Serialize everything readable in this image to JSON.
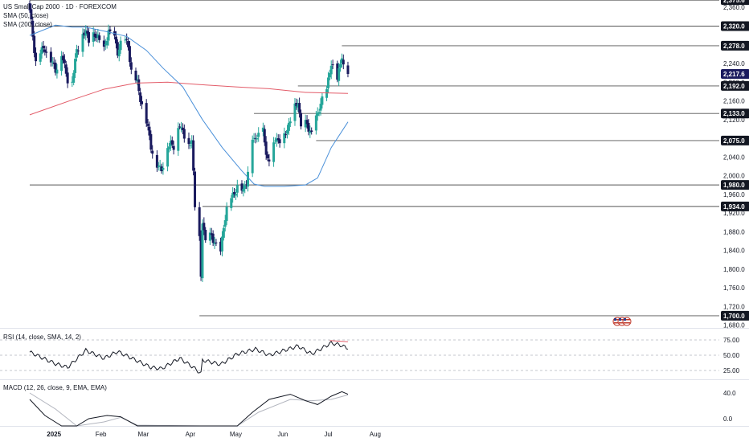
{
  "title": "US Small Cap 2000 · 1D · FOREXCOM",
  "legend": [
    "SMA (50, close)",
    "SMA (200, close)"
  ],
  "rsi_label": "RSI (14, close, SMA, 14, 2)",
  "macd_label": "MACD (12, 26, close, 9, EMA, EMA)",
  "colors": {
    "up": "#26a69a",
    "down": "#1a1a5e",
    "sma50": "#4a90d9",
    "sma200": "#e35d6a",
    "level_line": "#555555",
    "grid": "#eeeeee",
    "axis_text": "#131722"
  },
  "chart_data": {
    "type": "candlestick",
    "title": "US Small Cap 2000 · 1D · FOREXCOM",
    "x_labels": [
      "2025",
      "Feb",
      "Mar",
      "Apr",
      "May",
      "Jun",
      "Jul",
      "Aug"
    ],
    "price_axis": {
      "ticks": [
        1680,
        1720,
        1760,
        1800,
        1840,
        1880,
        1920,
        1960,
        2000,
        2040,
        2080,
        2120,
        2160,
        2200,
        2240,
        2280,
        2320,
        2360
      ],
      "tick_labels": [
        "1,680.0",
        "1,720.0",
        "1,760.0",
        "1,800.0",
        "1,840.0",
        "1,880.0",
        "1,920.0",
        "1,960.0",
        "2,000.0",
        "2,040.0",
        "2,080.0",
        "2,120.0",
        "2,160.0",
        "2,200.0",
        "2,240.0",
        "2,280.0",
        "2,320.0",
        "2,360.0"
      ],
      "range": [
        1665,
        2390
      ]
    },
    "horizontal_levels": [
      {
        "value": 2375.6,
        "label": "2,375.6",
        "from_date": "2024-12-16"
      },
      {
        "value": 2320.0,
        "label": "2,320.0",
        "from_date": "2024-12-16"
      },
      {
        "value": 2278.0,
        "label": "2,278.0",
        "from_date": "2025-07-10"
      },
      {
        "value": 2192.0,
        "label": "2,192.0",
        "from_date": "2025-06-11"
      },
      {
        "value": 2133.0,
        "label": "2,133.0",
        "from_date": "2025-05-13"
      },
      {
        "value": 2075.0,
        "label": "2,075.0",
        "from_date": "2025-06-23"
      },
      {
        "value": 1980.0,
        "label": "1,980.0",
        "from_date": "2024-12-16"
      },
      {
        "value": 1934.0,
        "label": "1,934.0",
        "from_date": "2025-04-09"
      },
      {
        "value": 1700.0,
        "label": "1,700.0",
        "from_date": "2025-04-07"
      }
    ],
    "last_price": {
      "value": 2217.6,
      "label": "2,217.6"
    },
    "anchors": [
      [
        "2024-12-16",
        2350
      ],
      [
        "2024-12-18",
        2300
      ],
      [
        "2024-12-20",
        2245
      ],
      [
        "2024-12-23",
        2262
      ],
      [
        "2024-12-26",
        2275
      ],
      [
        "2024-12-30",
        2245
      ],
      [
        "2025-01-02",
        2228
      ],
      [
        "2025-01-06",
        2258
      ],
      [
        "2025-01-08",
        2235
      ],
      [
        "2025-01-10",
        2208
      ],
      [
        "2025-01-13",
        2200
      ],
      [
        "2025-01-16",
        2270
      ],
      [
        "2025-01-22",
        2312
      ],
      [
        "2025-01-24",
        2290
      ],
      [
        "2025-01-28",
        2300
      ],
      [
        "2025-01-30",
        2300
      ],
      [
        "2025-02-03",
        2265
      ],
      [
        "2025-02-06",
        2312
      ],
      [
        "2025-02-10",
        2290
      ],
      [
        "2025-02-12",
        2265
      ],
      [
        "2025-02-14",
        2285
      ],
      [
        "2025-02-17",
        2285
      ],
      [
        "2025-02-19",
        2280
      ],
      [
        "2025-02-21",
        2225
      ],
      [
        "2025-02-25",
        2195
      ],
      [
        "2025-02-28",
        2155
      ],
      [
        "2025-03-04",
        2100
      ],
      [
        "2025-03-06",
        2065
      ],
      [
        "2025-03-10",
        2020
      ],
      [
        "2025-03-13",
        2015
      ],
      [
        "2025-03-17",
        2060
      ],
      [
        "2025-03-19",
        2070
      ],
      [
        "2025-03-21",
        2065
      ],
      [
        "2025-03-25",
        2110
      ],
      [
        "2025-03-27",
        2095
      ],
      [
        "2025-03-31",
        2060
      ],
      [
        "2025-04-02",
        2080
      ],
      [
        "2025-04-04",
        1935
      ],
      [
        "2025-04-07",
        1860
      ],
      [
        "2025-04-08",
        1785
      ],
      [
        "2025-04-09",
        1905
      ],
      [
        "2025-04-11",
        1860
      ],
      [
        "2025-04-15",
        1870
      ],
      [
        "2025-04-17",
        1860
      ],
      [
        "2025-04-21",
        1830
      ],
      [
        "2025-04-23",
        1895
      ],
      [
        "2025-04-25",
        1930
      ],
      [
        "2025-04-29",
        1955
      ],
      [
        "2025-05-02",
        1980
      ],
      [
        "2025-05-06",
        1965
      ],
      [
        "2025-05-08",
        1990
      ],
      [
        "2025-05-12",
        2080
      ],
      [
        "2025-05-14",
        2075
      ],
      [
        "2025-05-16",
        2100
      ],
      [
        "2025-05-19",
        2105
      ],
      [
        "2025-05-21",
        2040
      ],
      [
        "2025-05-23",
        2040
      ],
      [
        "2025-05-27",
        2080
      ],
      [
        "2025-05-29",
        2075
      ],
      [
        "2025-06-02",
        2085
      ],
      [
        "2025-06-04",
        2100
      ],
      [
        "2025-06-06",
        2120
      ],
      [
        "2025-06-09",
        2145
      ],
      [
        "2025-06-11",
        2160
      ],
      [
        "2025-06-13",
        2105
      ],
      [
        "2025-06-17",
        2110
      ],
      [
        "2025-06-20",
        2090
      ],
      [
        "2025-06-24",
        2130
      ],
      [
        "2025-06-26",
        2160
      ],
      [
        "2025-06-30",
        2180
      ],
      [
        "2025-07-02",
        2225
      ],
      [
        "2025-07-03",
        2245
      ],
      [
        "2025-07-07",
        2205
      ],
      [
        "2025-07-09",
        2240
      ],
      [
        "2025-07-10",
        2262
      ],
      [
        "2025-07-11",
        2240
      ],
      [
        "2025-07-14",
        2217.6
      ]
    ],
    "sma50": [
      [
        "2024-12-16",
        2300
      ],
      [
        "2025-01-02",
        2322
      ],
      [
        "2025-01-13",
        2318
      ],
      [
        "2025-01-22",
        2318
      ],
      [
        "2025-02-05",
        2308
      ],
      [
        "2025-02-18",
        2298
      ],
      [
        "2025-03-03",
        2268
      ],
      [
        "2025-03-14",
        2230
      ],
      [
        "2025-03-27",
        2190
      ],
      [
        "2025-04-09",
        2120
      ],
      [
        "2025-04-22",
        2060
      ],
      [
        "2025-05-05",
        2010
      ],
      [
        "2025-05-13",
        1982
      ],
      [
        "2025-05-20",
        1977
      ],
      [
        "2025-06-02",
        1977
      ],
      [
        "2025-06-16",
        1980
      ],
      [
        "2025-06-24",
        1995
      ],
      [
        "2025-07-03",
        2060
      ],
      [
        "2025-07-14",
        2115
      ]
    ],
    "sma200": [
      [
        "2024-12-16",
        2130
      ],
      [
        "2025-01-13",
        2162
      ],
      [
        "2025-02-03",
        2185
      ],
      [
        "2025-02-24",
        2198
      ],
      [
        "2025-03-17",
        2200
      ],
      [
        "2025-04-07",
        2195
      ],
      [
        "2025-05-01",
        2190
      ],
      [
        "2025-05-23",
        2186
      ],
      [
        "2025-06-16",
        2178
      ],
      [
        "2025-07-14",
        2176
      ]
    ],
    "rsi": {
      "name": "RSI (14, close, SMA, 14, 2)",
      "ticks": [
        25,
        50,
        75
      ],
      "tick_labels": [
        "25.00",
        "50.00",
        "75.00"
      ],
      "values": [
        [
          "2024-12-16",
          55
        ],
        [
          "2025-01-02",
          36
        ],
        [
          "2025-01-10",
          30
        ],
        [
          "2025-01-22",
          58
        ],
        [
          "2025-02-03",
          45
        ],
        [
          "2025-02-12",
          56
        ],
        [
          "2025-02-24",
          42
        ],
        [
          "2025-03-06",
          30
        ],
        [
          "2025-03-13",
          28
        ],
        [
          "2025-03-25",
          45
        ],
        [
          "2025-04-03",
          30
        ],
        [
          "2025-04-08",
          20
        ],
        [
          "2025-04-09",
          42
        ],
        [
          "2025-04-21",
          35
        ],
        [
          "2025-05-02",
          52
        ],
        [
          "2025-05-14",
          60
        ],
        [
          "2025-05-23",
          50
        ],
        [
          "2025-06-11",
          65
        ],
        [
          "2025-06-20",
          52
        ],
        [
          "2025-07-03",
          70
        ],
        [
          "2025-07-10",
          66
        ],
        [
          "2025-07-14",
          60
        ]
      ]
    },
    "macd": {
      "name": "MACD (12, 26, close, 9, EMA, EMA)",
      "ticks": [
        0,
        40
      ],
      "tick_labels": [
        "0.0",
        "40.0"
      ],
      "macd_line": [
        [
          "2024-12-16",
          30
        ],
        [
          "2024-12-26",
          5
        ],
        [
          "2025-01-06",
          -30
        ],
        [
          "2025-01-16",
          -28
        ],
        [
          "2025-01-24",
          0
        ],
        [
          "2025-02-05",
          5
        ],
        [
          "2025-02-14",
          3
        ],
        [
          "2025-02-25",
          -20
        ],
        [
          "2025-04-08",
          -60
        ],
        [
          "2025-05-02",
          -20
        ],
        [
          "2025-05-12",
          10
        ],
        [
          "2025-05-23",
          30
        ],
        [
          "2025-06-06",
          38
        ],
        [
          "2025-06-16",
          28
        ],
        [
          "2025-06-24",
          22
        ],
        [
          "2025-07-03",
          35
        ],
        [
          "2025-07-10",
          42
        ],
        [
          "2025-07-14",
          38
        ]
      ],
      "signal_line": [
        [
          "2024-12-16",
          40
        ],
        [
          "2025-01-02",
          15
        ],
        [
          "2025-01-16",
          -25
        ],
        [
          "2025-02-03",
          -5
        ],
        [
          "2025-02-14",
          2
        ],
        [
          "2025-02-25",
          -10
        ],
        [
          "2025-04-08",
          -55
        ],
        [
          "2025-05-02",
          -30
        ],
        [
          "2025-05-16",
          10
        ],
        [
          "2025-06-06",
          30
        ],
        [
          "2025-06-20",
          28
        ],
        [
          "2025-07-03",
          30
        ],
        [
          "2025-07-14",
          37
        ]
      ]
    }
  }
}
